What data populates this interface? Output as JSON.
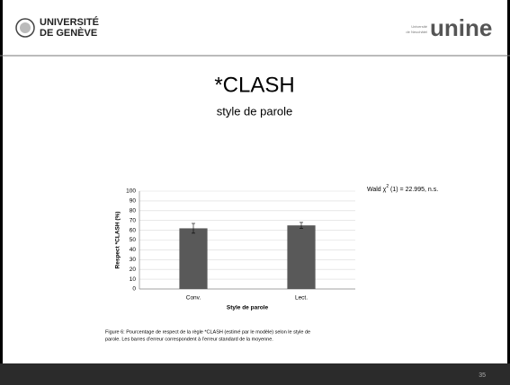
{
  "header": {
    "left_logo": [
      "UNIVERSITÉ",
      "DE GENÈVE"
    ],
    "right_logo_small": [
      "Université",
      "de Neuchâtel"
    ],
    "right_logo": "unine"
  },
  "title": "*CLASH",
  "subtitle": "style de parole",
  "chart_data": {
    "type": "bar",
    "categories": [
      "Conv.",
      "Lect."
    ],
    "values": [
      62,
      65
    ],
    "errors": [
      5,
      3
    ],
    "color": "#595959",
    "ylim": [
      0,
      100
    ],
    "yticks": [
      0,
      10,
      20,
      30,
      40,
      50,
      60,
      70,
      80,
      90,
      100
    ],
    "grid": true,
    "y_label": "Respect *CLASH (%)",
    "x_label": "Style de parole",
    "annotation": [
      "Wald χ",
      "2",
      " (1) = 22.995, n.s."
    ]
  },
  "caption": [
    "Figure 6: Pourcentage de respect de la règle *CLASH (estimé par le modèle) selon le style de",
    "parole. Les barres d’erreur correspondent à l’erreur standard de la moyenne."
  ],
  "page_number": "35"
}
